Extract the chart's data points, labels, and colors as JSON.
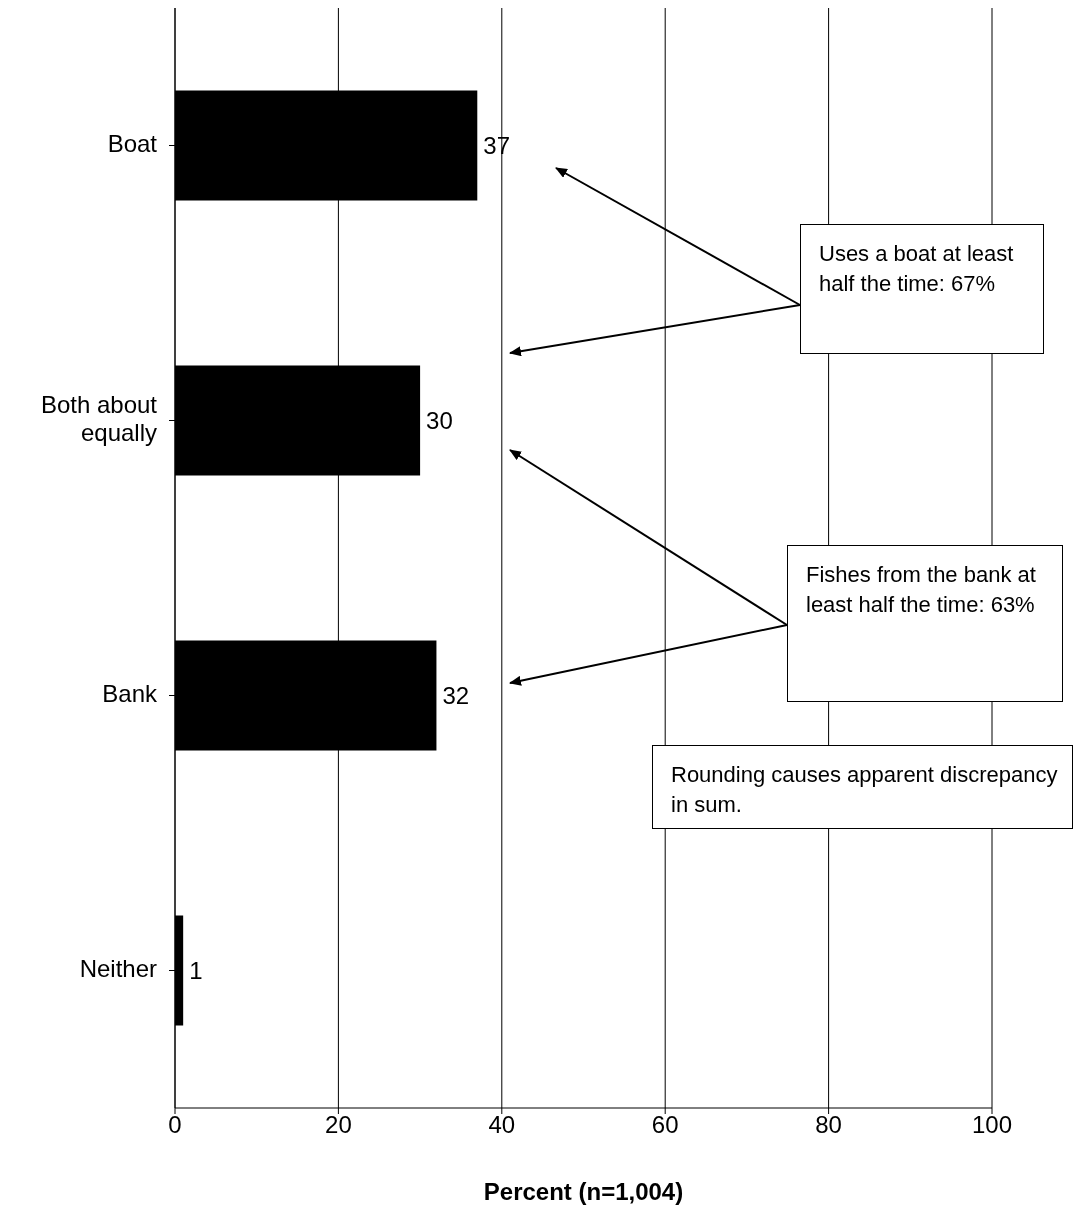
{
  "chart_data": {
    "type": "bar",
    "orientation": "horizontal",
    "categories": [
      "Boat",
      "Both about equally",
      "Bank",
      "Neither"
    ],
    "values": [
      37,
      30,
      32,
      1
    ],
    "color": "#000000",
    "data_labels": true,
    "xlabel": "Percent (n=1,004)",
    "xlim": [
      0,
      100
    ],
    "xticks": [
      0,
      20,
      40,
      60,
      80,
      100
    ],
    "grid": "x",
    "annotations": [
      "Uses a boat at least half the time:  67%",
      "Fishes from the bank at least half the time:  63%",
      "Rounding causes apparent discrepancy in sum."
    ]
  }
}
